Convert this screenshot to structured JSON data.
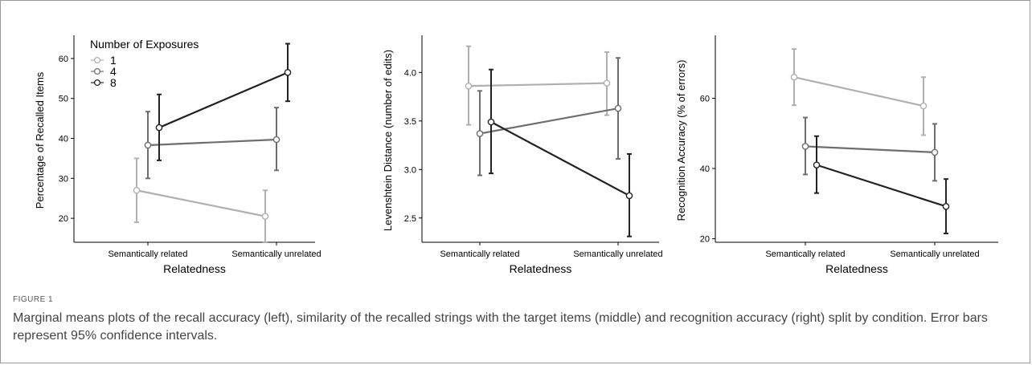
{
  "figure": {
    "label": "FIGURE 1",
    "caption": "Marginal means plots of the recall accuracy (left), similarity of the recalled strings with the target items (middle) and recognition accuracy (right) split by condition. Error bars represent 95% confidence intervals."
  },
  "legend": {
    "title": "Number of Exposures",
    "entries": [
      "1",
      "4",
      "8"
    ],
    "placement": "top-left of first panel"
  },
  "colors": {
    "1": "#b0b0b0",
    "4": "#6e6e6e",
    "8": "#222222"
  },
  "chart_data": [
    {
      "type": "line",
      "title": "",
      "xlabel": "Relatedness",
      "ylabel": "Percentage of Recalled Items",
      "categories": [
        "Semantically related",
        "Semantically unrelated"
      ],
      "ylim": [
        14,
        65
      ],
      "yticks": [
        "20",
        "30",
        "40",
        "50",
        "60"
      ],
      "series": [
        {
          "name": "1",
          "values": [
            27,
            20.5
          ],
          "ci_low": [
            19,
            14
          ],
          "ci_high": [
            35,
            27
          ]
        },
        {
          "name": "4",
          "values": [
            38.3,
            39.7
          ],
          "ci_low": [
            30,
            32
          ],
          "ci_high": [
            46.7,
            47.7
          ]
        },
        {
          "name": "8",
          "values": [
            42.7,
            56.5
          ],
          "ci_low": [
            34.5,
            49.3
          ],
          "ci_high": [
            51,
            63.7
          ]
        }
      ]
    },
    {
      "type": "line",
      "title": "",
      "xlabel": "Relatedness",
      "ylabel": "Levenshtein Distance (number of edits)",
      "categories": [
        "Semantically related",
        "Semantically unrelated"
      ],
      "ylim": [
        2.25,
        4.35
      ],
      "yticks": [
        "2.5",
        "3.0",
        "3.5",
        "4.0"
      ],
      "series": [
        {
          "name": "1",
          "values": [
            3.86,
            3.89
          ],
          "ci_low": [
            3.46,
            3.56
          ],
          "ci_high": [
            4.27,
            4.21
          ]
        },
        {
          "name": "4",
          "values": [
            3.37,
            3.63
          ],
          "ci_low": [
            2.94,
            3.11
          ],
          "ci_high": [
            3.81,
            4.15
          ]
        },
        {
          "name": "8",
          "values": [
            3.49,
            2.73
          ],
          "ci_low": [
            2.96,
            2.31
          ],
          "ci_high": [
            4.03,
            3.16
          ]
        }
      ]
    },
    {
      "type": "line",
      "title": "",
      "xlabel": "Relatedness",
      "ylabel": "Recognition Accuracy (% of errors)",
      "categories": [
        "Semantically related",
        "Semantically unrelated"
      ],
      "ylim": [
        19,
        77
      ],
      "yticks": [
        "20",
        "40",
        "60"
      ],
      "series": [
        {
          "name": "1",
          "values": [
            66,
            57.8
          ],
          "ci_low": [
            58,
            49.5
          ],
          "ci_high": [
            74,
            66
          ]
        },
        {
          "name": "4",
          "values": [
            46.3,
            44.6
          ],
          "ci_low": [
            38.3,
            36.5
          ],
          "ci_high": [
            54.5,
            52.7
          ]
        },
        {
          "name": "8",
          "values": [
            41,
            29.2
          ],
          "ci_low": [
            33,
            21.5
          ],
          "ci_high": [
            49.2,
            37
          ]
        }
      ]
    }
  ]
}
